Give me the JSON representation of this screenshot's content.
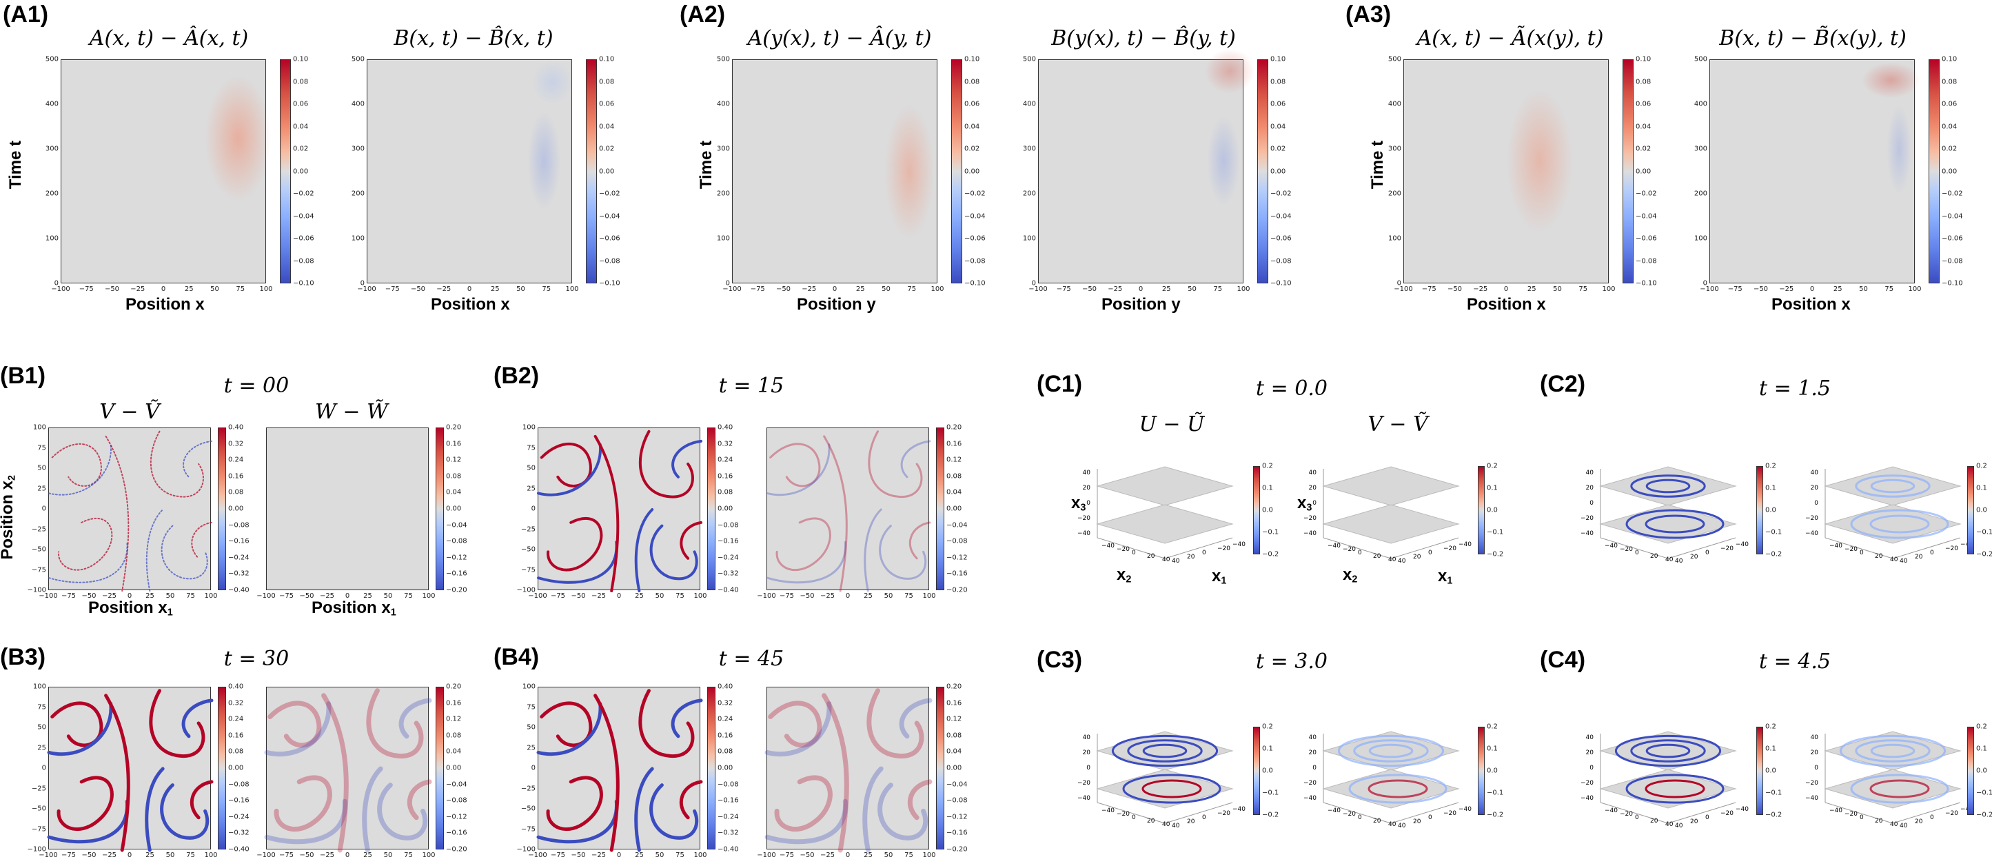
{
  "labels": {
    "A1": "(A1)",
    "A2": "(A2)",
    "A3": "(A3)",
    "B1": "(B1)",
    "B2": "(B2)",
    "B3": "(B3)",
    "B4": "(B4)",
    "C1": "(C1)",
    "C2": "(C2)",
    "C3": "(C3)",
    "C4": "(C4)"
  },
  "titles": {
    "a1l": "A(x, t) − Â(x, t)",
    "a1r": "B(x, t) − B̂(x, t)",
    "a2l": "A(y(x), t) − Â(y, t)",
    "a2r": "B(y(x), t) − B̂(y, t)",
    "a3l": "A(x, t) − Ã(x(y), t)",
    "a3r": "B(x, t) − B̃(x(y), t)",
    "b1t": "t = 00",
    "b2t": "t = 15",
    "b3t": "t = 30",
    "b4t": "t = 45",
    "b1l": "V − Ṽ",
    "b1r": "W − W̃",
    "c1t": "t = 0.0",
    "c2t": "t = 1.5",
    "c3t": "t = 3.0",
    "c4t": "t = 4.5",
    "c1l": "U − Ũ",
    "c1r": "V − Ṽ"
  },
  "axis": {
    "time": "Time t",
    "posx": "Position x",
    "posy": "Position y",
    "posx_main": "Position x",
    "x_sub": "1",
    "x2": "x",
    "x2sub": "2",
    "x3": "x",
    "x3sub": "3",
    "x1sub": "1"
  },
  "ticks": {
    "a_x": [
      "−100",
      "−75",
      "−50",
      "−25",
      "0",
      "25",
      "50",
      "75",
      "100"
    ],
    "a_y": [
      "0",
      "100",
      "200",
      "300",
      "400",
      "500"
    ],
    "a_cb": [
      "0.10",
      "0.08",
      "0.06",
      "0.04",
      "0.02",
      "0.00",
      "−0.02",
      "−0.04",
      "−0.06",
      "−0.08",
      "−0.10"
    ],
    "b_x": [
      "−100",
      "−75",
      "−50",
      "−25",
      "0",
      "25",
      "50",
      "75",
      "100"
    ],
    "b_y": [
      "100",
      "75",
      "50",
      "25",
      "0",
      "−25",
      "−50",
      "−75",
      "−100"
    ],
    "b_cbV": [
      "0.40",
      "0.32",
      "0.24",
      "0.16",
      "0.08",
      "0.00",
      "−0.08",
      "−0.16",
      "−0.24",
      "−0.32",
      "−0.40"
    ],
    "b_cbW": [
      "0.20",
      "0.16",
      "0.12",
      "0.08",
      "0.04",
      "0.00",
      "−0.04",
      "−0.08",
      "−0.12",
      "−0.16",
      "−0.20"
    ],
    "c_cb": [
      "0.2",
      "0.1",
      "0.0",
      "−0.1",
      "−0.2"
    ],
    "c_z": [
      "40",
      "20",
      "0",
      "−20",
      "−40"
    ],
    "c_x1": [
      "−40",
      "−20",
      "0",
      "20",
      "40"
    ],
    "c_x2": [
      "−40",
      "−20",
      "0",
      "20",
      "40"
    ]
  },
  "chart_data": [
    {
      "type": "heatmap",
      "panel": "A1-left",
      "title": "A(x, t) − Â(x, t)",
      "xlabel": "Position x",
      "ylabel": "Time t",
      "xlim": [
        -100,
        100
      ],
      "ylim": [
        0,
        500
      ],
      "clim": [
        -0.1,
        0.1
      ],
      "cmap": "coolwarm"
    },
    {
      "type": "heatmap",
      "panel": "A1-right",
      "title": "B(x, t) − B̂(x, t)",
      "xlabel": "Position x",
      "xlim": [
        -100,
        100
      ],
      "ylim": [
        0,
        500
      ],
      "clim": [
        -0.1,
        0.1
      ],
      "cmap": "coolwarm"
    },
    {
      "type": "heatmap",
      "panel": "A2-left",
      "title": "A(y(x), t) − Â(y, t)",
      "xlabel": "Position y",
      "ylabel": "Time t",
      "xlim": [
        -100,
        100
      ],
      "ylim": [
        0,
        500
      ],
      "clim": [
        -0.1,
        0.1
      ],
      "cmap": "coolwarm"
    },
    {
      "type": "heatmap",
      "panel": "A2-right",
      "title": "B(y(x), t) − B̂(y, t)",
      "xlabel": "Position y",
      "xlim": [
        -100,
        100
      ],
      "ylim": [
        0,
        500
      ],
      "clim": [
        -0.1,
        0.1
      ],
      "cmap": "coolwarm"
    },
    {
      "type": "heatmap",
      "panel": "A3-left",
      "title": "A(x, t) − Ã(x(y), t)",
      "xlabel": "Position x",
      "ylabel": "Time t",
      "xlim": [
        -100,
        100
      ],
      "ylim": [
        0,
        500
      ],
      "clim": [
        -0.1,
        0.1
      ],
      "cmap": "coolwarm"
    },
    {
      "type": "heatmap",
      "panel": "A3-right",
      "title": "B(x, t) − B̃(x(y), t)",
      "xlabel": "Position x",
      "xlim": [
        -100,
        100
      ],
      "ylim": [
        0,
        500
      ],
      "clim": [
        -0.1,
        0.1
      ],
      "cmap": "coolwarm"
    },
    {
      "type": "heatmap",
      "panel": "B1-B4",
      "title": "V − Ṽ / W − W̃",
      "times": [
        "00",
        "15",
        "30",
        "45"
      ],
      "xlim": [
        -100,
        100
      ],
      "ylim": [
        -100,
        100
      ],
      "clim_V": [
        -0.4,
        0.4
      ],
      "clim_W": [
        -0.2,
        0.2
      ],
      "cmap": "coolwarm"
    },
    {
      "type": "heatmap",
      "panel": "C1-C4",
      "title": "U − Ũ / V − Ṽ",
      "times": [
        "0.0",
        "1.5",
        "3.0",
        "4.5"
      ],
      "xlim": [
        -40,
        40
      ],
      "ylim": [
        -40,
        40
      ],
      "zlim": [
        -40,
        40
      ],
      "clim": [
        -0.2,
        0.2
      ],
      "cmap": "coolwarm"
    }
  ]
}
